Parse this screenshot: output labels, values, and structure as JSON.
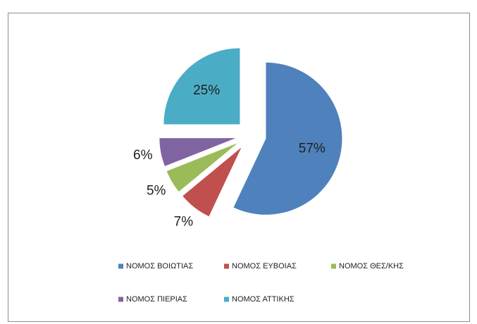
{
  "chart_data": {
    "type": "pie",
    "categories": [
      "ΝΟΜΟΣ ΒΟΙΩΤΙΑΣ",
      "ΝΟΜΟΣ ΕΥΒΟΙΑΣ",
      "ΝΟΜΟΣ ΘΕΣ/ΚΗΣ",
      "ΝΟΜΟΣ ΠΙΕΡΙΑΣ",
      "ΝΟΜΟΣ ΑΤΤΙΚΗΣ"
    ],
    "values": [
      57,
      7,
      5,
      6,
      25
    ],
    "value_labels": [
      "57%",
      "7%",
      "5%",
      "6%",
      "25%"
    ],
    "colors": [
      "#4f81bd",
      "#c0504d",
      "#9bbb59",
      "#8064a2",
      "#4bacc6"
    ],
    "legend": "bottom"
  }
}
